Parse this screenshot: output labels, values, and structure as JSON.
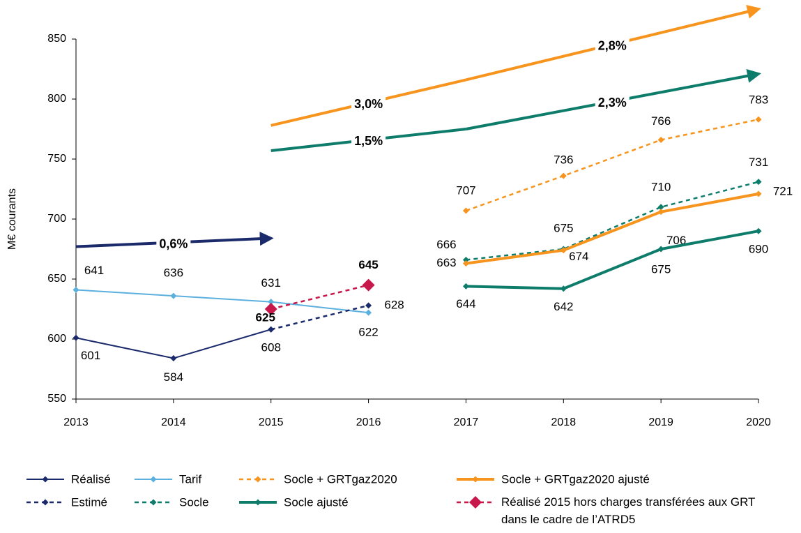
{
  "chart_data": {
    "type": "line",
    "y_label": "M€ courants",
    "categories": [
      "2013",
      "2014",
      "2015",
      "2016",
      "2017",
      "2018",
      "2019",
      "2020"
    ],
    "ylim": [
      550,
      850
    ],
    "yticks": [
      550,
      600,
      650,
      700,
      750,
      800,
      850
    ],
    "series": [
      {
        "name": "Réalisé",
        "color": "#1b2a6b",
        "dash": false,
        "linewidth": 2,
        "values": [
          601,
          584,
          608,
          null,
          null,
          null,
          null,
          null
        ]
      },
      {
        "name": "Tarif",
        "color": "#5bb0de",
        "dash": false,
        "linewidth": 2,
        "values": [
          641,
          636,
          631,
          622,
          null,
          null,
          null,
          null
        ]
      },
      {
        "name": "Socle + GRTgaz2020",
        "color": "#f7941d",
        "dash": true,
        "linewidth": 2.5,
        "values": [
          null,
          null,
          null,
          null,
          707,
          736,
          766,
          783
        ]
      },
      {
        "name": "Socle + GRTgaz2020 ajusté",
        "color": "#f7941d",
        "dash": false,
        "linewidth": 4,
        "values": [
          null,
          null,
          null,
          null,
          663,
          674,
          706,
          721
        ]
      },
      {
        "name": "Estimé",
        "color": "#1b2a6b",
        "dash": true,
        "linewidth": 2.5,
        "values": [
          null,
          null,
          608,
          628,
          null,
          null,
          null,
          null
        ]
      },
      {
        "name": "Socle",
        "color": "#0e7c6b",
        "dash": true,
        "linewidth": 2.5,
        "values": [
          null,
          null,
          null,
          null,
          666,
          675,
          710,
          731
        ]
      },
      {
        "name": "Socle ajusté",
        "color": "#0e7c6b",
        "dash": false,
        "linewidth": 4,
        "values": [
          null,
          null,
          null,
          null,
          644,
          642,
          675,
          690
        ]
      },
      {
        "name": "Réalisé 2015 hors charges transférées aux GRT dans le cadre de l’ATRD5",
        "color": "#c8174b",
        "dash": true,
        "linewidth": 2.5,
        "marker_size": 9,
        "values": [
          null,
          null,
          625,
          645,
          null,
          null,
          null,
          null
        ]
      }
    ],
    "trends": [
      {
        "label": "0,6%",
        "color": "#1b2a6b",
        "x": [
          "2013",
          "2015"
        ],
        "values": [
          677,
          684
        ],
        "arrow": true
      },
      {
        "label": "3,0%",
        "color": "#f7941d",
        "x": [
          "2015",
          "2017"
        ],
        "values": [
          778,
          816
        ],
        "arrow": false
      },
      {
        "label": "2,8%",
        "color": "#f7941d",
        "x": [
          "2017",
          "2020"
        ],
        "values": [
          816,
          875
        ],
        "arrow": true
      },
      {
        "label": "1,5%",
        "color": "#0e7c6b",
        "x": [
          "2015",
          "2017"
        ],
        "values": [
          757,
          775
        ],
        "arrow": false
      },
      {
        "label": "2,3%",
        "color": "#0e7c6b",
        "x": [
          "2017",
          "2020"
        ],
        "values": [
          775,
          821
        ],
        "arrow": true
      }
    ]
  }
}
